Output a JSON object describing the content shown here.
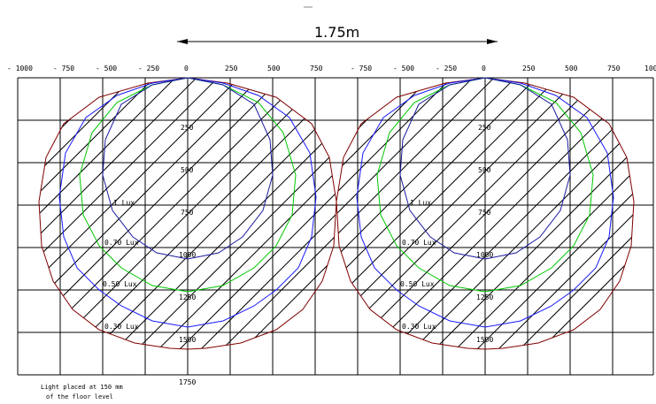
{
  "dimension": {
    "label": "1.75m"
  },
  "x_ticks_left": [
    "- 1000",
    "- 750",
    "- 500",
    "- 250",
    "0",
    "250",
    "500",
    "750"
  ],
  "x_ticks_right": [
    "- 750",
    "- 500",
    "- 250",
    "0",
    "250",
    "500",
    "750",
    "100"
  ],
  "y_ticks": [
    "250",
    "500",
    "750",
    "1000",
    "1250",
    "1500",
    "1750"
  ],
  "contour_labels": [
    "1 Lux",
    "0.70 Lux",
    "0.50 Lux",
    "0.30 Lux"
  ],
  "note": {
    "line1": "Light placed at 150 mm",
    "line2": "of the floor level"
  },
  "colors": {
    "lux1": "#1a1aa0",
    "lux070": "#00c800",
    "lux050": "#1a1aff",
    "lux030": "#800000",
    "grid": "#000000"
  }
}
